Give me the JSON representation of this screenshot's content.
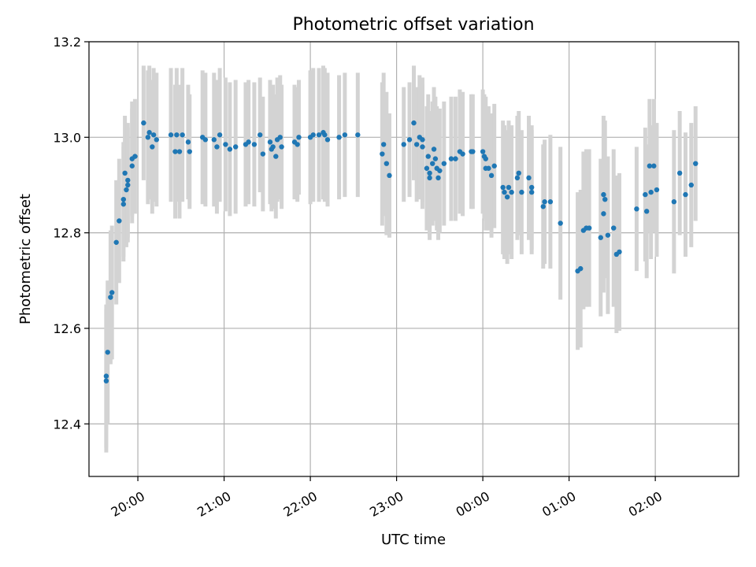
{
  "chart_data": {
    "type": "scatter",
    "title": "Photometric offset variation",
    "xlabel": "UTC time",
    "ylabel": "Photometric offset",
    "x_unit": "UTC time (HH:MM)",
    "xlim": [
      "19:26",
      "02:58"
    ],
    "ylim": [
      12.29,
      13.2
    ],
    "grid": true,
    "x_ticks": [
      "20:00",
      "21:00",
      "22:00",
      "23:00",
      "00:00",
      "01:00",
      "02:00"
    ],
    "y_ticks": [
      "12.4",
      "12.6",
      "12.8",
      "13.0",
      "13.2"
    ],
    "colors": {
      "point": "#1f77b4",
      "errorbar": "#d3d3d3",
      "grid": "#b0b0b0"
    },
    "series": [
      {
        "points": [
          [
            "19:38",
            12.49,
            0.15
          ],
          [
            "19:38",
            12.5,
            0.15
          ],
          [
            "19:39",
            12.55,
            0.15
          ],
          [
            "19:41",
            12.665,
            0.14
          ],
          [
            "19:42",
            12.675,
            0.14
          ],
          [
            "19:45",
            12.78,
            0.13
          ],
          [
            "19:47",
            12.825,
            0.13
          ],
          [
            "19:50",
            12.86,
            0.12
          ],
          [
            "19:50",
            12.87,
            0.12
          ],
          [
            "19:51",
            12.925,
            0.12
          ],
          [
            "19:52",
            12.89,
            0.12
          ],
          [
            "19:53",
            12.9,
            0.12
          ],
          [
            "19:53",
            12.91,
            0.12
          ],
          [
            "19:56",
            12.94,
            0.12
          ],
          [
            "19:56",
            12.955,
            0.12
          ],
          [
            "19:58",
            12.96,
            0.12
          ],
          [
            "20:04",
            13.03,
            0.12
          ],
          [
            "20:07",
            13.0,
            0.14
          ],
          [
            "20:08",
            13.01,
            0.14
          ],
          [
            "20:10",
            12.98,
            0.14
          ],
          [
            "20:11",
            13.005,
            0.14
          ],
          [
            "20:13",
            12.995,
            0.14
          ],
          [
            "20:23",
            13.005,
            0.14
          ],
          [
            "20:26",
            12.97,
            0.14
          ],
          [
            "20:27",
            13.005,
            0.14
          ],
          [
            "20:29",
            12.97,
            0.14
          ],
          [
            "20:31",
            13.005,
            0.14
          ],
          [
            "20:35",
            12.99,
            0.12
          ],
          [
            "20:36",
            12.97,
            0.12
          ],
          [
            "20:45",
            13.0,
            0.14
          ],
          [
            "20:47",
            12.995,
            0.14
          ],
          [
            "20:53",
            12.995,
            0.14
          ],
          [
            "20:55",
            12.98,
            0.14
          ],
          [
            "20:57",
            13.005,
            0.14
          ],
          [
            "21:01",
            12.985,
            0.14
          ],
          [
            "21:04",
            12.975,
            0.14
          ],
          [
            "21:08",
            12.98,
            0.14
          ],
          [
            "21:15",
            12.985,
            0.13
          ],
          [
            "21:17",
            12.99,
            0.13
          ],
          [
            "21:21",
            12.985,
            0.13
          ],
          [
            "21:25",
            13.005,
            0.12
          ],
          [
            "21:27",
            12.965,
            0.12
          ],
          [
            "21:32",
            12.99,
            0.13
          ],
          [
            "21:33",
            12.975,
            0.13
          ],
          [
            "21:34",
            12.98,
            0.13
          ],
          [
            "21:36",
            12.96,
            0.13
          ],
          [
            "21:37",
            12.995,
            0.13
          ],
          [
            "21:39",
            13.0,
            0.13
          ],
          [
            "21:40",
            12.98,
            0.13
          ],
          [
            "21:49",
            12.99,
            0.12
          ],
          [
            "21:51",
            12.985,
            0.12
          ],
          [
            "21:52",
            13.0,
            0.12
          ],
          [
            "22:00",
            13.0,
            0.14
          ],
          [
            "22:02",
            13.005,
            0.14
          ],
          [
            "22:06",
            13.005,
            0.14
          ],
          [
            "22:09",
            13.01,
            0.14
          ],
          [
            "22:10",
            13.005,
            0.14
          ],
          [
            "22:12",
            12.995,
            0.14
          ],
          [
            "22:20",
            13.0,
            0.13
          ],
          [
            "22:24",
            13.005,
            0.13
          ],
          [
            "22:33",
            13.005,
            0.13
          ],
          [
            "22:50",
            12.965,
            0.15
          ],
          [
            "22:51",
            12.985,
            0.15
          ],
          [
            "22:53",
            12.945,
            0.15
          ],
          [
            "22:55",
            12.92,
            0.13
          ],
          [
            "23:05",
            12.985,
            0.12
          ],
          [
            "23:09",
            12.995,
            0.12
          ],
          [
            "23:12",
            13.03,
            0.12
          ],
          [
            "23:14",
            12.985,
            0.12
          ],
          [
            "23:16",
            13.0,
            0.13
          ],
          [
            "23:18",
            12.995,
            0.13
          ],
          [
            "23:18",
            12.98,
            0.13
          ],
          [
            "23:21",
            12.935,
            0.13
          ],
          [
            "23:22",
            12.96,
            0.13
          ],
          [
            "23:23",
            12.915,
            0.13
          ],
          [
            "23:23",
            12.925,
            0.13
          ],
          [
            "23:25",
            12.945,
            0.13
          ],
          [
            "23:26",
            12.975,
            0.13
          ],
          [
            "23:27",
            12.955,
            0.13
          ],
          [
            "23:28",
            12.935,
            0.13
          ],
          [
            "23:29",
            12.915,
            0.13
          ],
          [
            "23:30",
            12.93,
            0.13
          ],
          [
            "23:33",
            12.945,
            0.13
          ],
          [
            "23:38",
            12.955,
            0.13
          ],
          [
            "23:41",
            12.955,
            0.13
          ],
          [
            "23:44",
            12.97,
            0.13
          ],
          [
            "23:46",
            12.965,
            0.13
          ],
          [
            "23:52",
            12.97,
            0.12
          ],
          [
            "23:53",
            12.97,
            0.12
          ],
          [
            "00:00",
            12.97,
            0.13
          ],
          [
            "00:01",
            12.96,
            0.13
          ],
          [
            "00:02",
            12.955,
            0.13
          ],
          [
            "00:02",
            12.935,
            0.13
          ],
          [
            "00:04",
            12.935,
            0.13
          ],
          [
            "00:06",
            12.92,
            0.13
          ],
          [
            "00:08",
            12.94,
            0.13
          ],
          [
            "00:14",
            12.895,
            0.14
          ],
          [
            "00:15",
            12.885,
            0.14
          ],
          [
            "00:17",
            12.875,
            0.14
          ],
          [
            "00:18",
            12.895,
            0.14
          ],
          [
            "00:20",
            12.885,
            0.14
          ],
          [
            "00:24",
            12.915,
            0.13
          ],
          [
            "00:25",
            12.925,
            0.13
          ],
          [
            "00:27",
            12.885,
            0.13
          ],
          [
            "00:32",
            12.915,
            0.13
          ],
          [
            "00:34",
            12.885,
            0.13
          ],
          [
            "00:34",
            12.895,
            0.13
          ],
          [
            "00:42",
            12.855,
            0.13
          ],
          [
            "00:43",
            12.865,
            0.13
          ],
          [
            "00:47",
            12.865,
            0.14
          ],
          [
            "00:54",
            12.82,
            0.16
          ],
          [
            "01:06",
            12.72,
            0.165
          ],
          [
            "01:08",
            12.725,
            0.165
          ],
          [
            "01:10",
            12.805,
            0.165
          ],
          [
            "01:12",
            12.81,
            0.165
          ],
          [
            "01:14",
            12.81,
            0.165
          ],
          [
            "01:22",
            12.79,
            0.165
          ],
          [
            "01:24",
            12.88,
            0.165
          ],
          [
            "01:24",
            12.84,
            0.165
          ],
          [
            "01:25",
            12.87,
            0.165
          ],
          [
            "01:27",
            12.795,
            0.165
          ],
          [
            "01:31",
            12.81,
            0.165
          ],
          [
            "01:33",
            12.755,
            0.165
          ],
          [
            "01:35",
            12.76,
            0.165
          ],
          [
            "01:47",
            12.85,
            0.13
          ],
          [
            "01:53",
            12.88,
            0.14
          ],
          [
            "01:54",
            12.845,
            0.14
          ],
          [
            "01:56",
            12.94,
            0.14
          ],
          [
            "01:57",
            12.885,
            0.14
          ],
          [
            "01:59",
            12.94,
            0.14
          ],
          [
            "02:01",
            12.89,
            0.14
          ],
          [
            "02:13",
            12.865,
            0.15
          ],
          [
            "02:17",
            12.925,
            0.13
          ],
          [
            "02:21",
            12.88,
            0.13
          ],
          [
            "02:25",
            12.9,
            0.13
          ],
          [
            "02:28",
            12.945,
            0.12
          ]
        ]
      }
    ]
  }
}
